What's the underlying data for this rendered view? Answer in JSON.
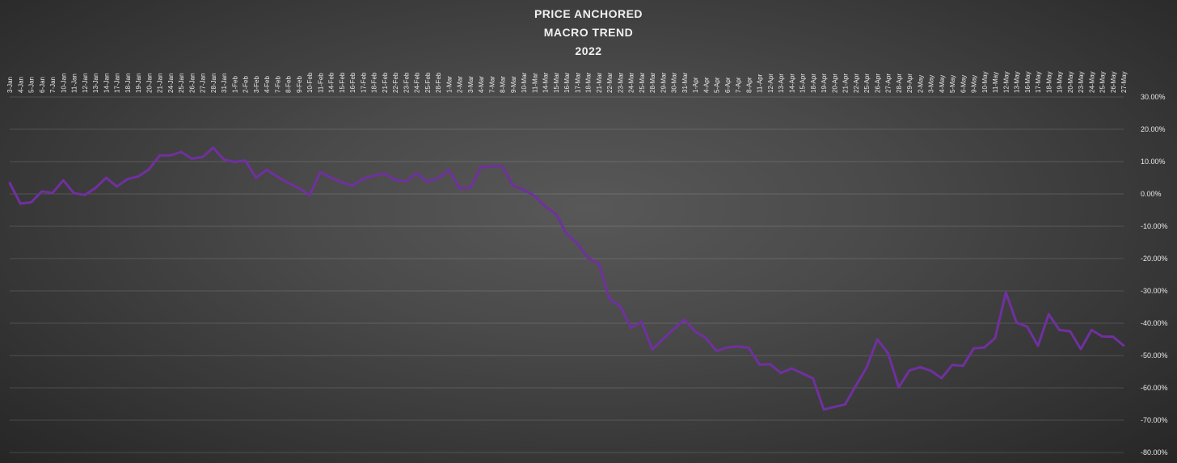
{
  "chart_data": {
    "type": "line",
    "title_lines": [
      "PRICE ANCHORED",
      "MACRO TREND",
      "2022"
    ],
    "ylim": [
      -80,
      30
    ],
    "y_ticks": [
      "-80.00%",
      "-70.00%",
      "-60.00%",
      "-50.00%",
      "-40.00%",
      "-30.00%",
      "-20.00%",
      "-10.00%",
      "0.00%",
      "10.00%",
      "20.00%",
      "30.00%"
    ],
    "y_tick_values": [
      -80,
      -70,
      -60,
      -50,
      -40,
      -30,
      -20,
      -10,
      0,
      10,
      20,
      30
    ],
    "grid": true,
    "line_color": "#7030a0",
    "x": [
      "3-Jan",
      "4-Jan",
      "5-Jan",
      "6-Jan",
      "7-Jan",
      "10-Jan",
      "11-Jan",
      "12-Jan",
      "13-Jan",
      "14-Jan",
      "17-Jan",
      "18-Jan",
      "19-Jan",
      "20-Jan",
      "21-Jan",
      "24-Jan",
      "25-Jan",
      "26-Jan",
      "27-Jan",
      "28-Jan",
      "31-Jan",
      "1-Feb",
      "2-Feb",
      "3-Feb",
      "4-Feb",
      "7-Feb",
      "8-Feb",
      "9-Feb",
      "10-Feb",
      "11-Feb",
      "14-Feb",
      "15-Feb",
      "16-Feb",
      "17-Feb",
      "18-Feb",
      "21-Feb",
      "22-Feb",
      "23-Feb",
      "24-Feb",
      "25-Feb",
      "28-Feb",
      "1-Mar",
      "2-Mar",
      "3-Mar",
      "4-Mar",
      "7-Mar",
      "8-Mar",
      "9-Mar",
      "10-Mar",
      "11-Mar",
      "14-Mar",
      "15-Mar",
      "16-Mar",
      "17-Mar",
      "18-Mar",
      "21-Mar",
      "22-Mar",
      "23-Mar",
      "24-Mar",
      "25-Mar",
      "28-Mar",
      "29-Mar",
      "30-Mar",
      "31-Mar",
      "1-Apr",
      "4-Apr",
      "5-Apr",
      "6-Apr",
      "7-Apr",
      "8-Apr",
      "11-Apr",
      "12-Apr",
      "13-Apr",
      "14-Apr",
      "15-Apr",
      "18-Apr",
      "19-Apr",
      "20-Apr",
      "21-Apr",
      "22-Apr",
      "25-Apr",
      "26-Apr",
      "27-Apr",
      "28-Apr",
      "29-Apr",
      "2-May",
      "3-May",
      "4-May",
      "5-May",
      "6-May",
      "9-May",
      "10-May",
      "11-May",
      "12-May",
      "13-May",
      "16-May",
      "17-May",
      "18-May",
      "19-May",
      "20-May",
      "23-May",
      "24-May",
      "25-May",
      "26-May",
      "27-May"
    ],
    "series": [
      {
        "values": [
          3.4,
          -3.0,
          -2.6,
          0.8,
          0.3,
          4.2,
          0.2,
          -0.3,
          1.8,
          5.0,
          2.3,
          4.6,
          5.4,
          7.6,
          11.9,
          11.9,
          13.0,
          10.9,
          11.4,
          14.3,
          10.6,
          9.9,
          10.3,
          5.0,
          7.5,
          5.3,
          3.4,
          1.8,
          -0.4,
          6.8,
          5.0,
          3.6,
          2.5,
          4.7,
          5.6,
          6.3,
          4.3,
          3.9,
          6.4,
          3.7,
          4.9,
          7.4,
          1.7,
          1.9,
          8.3,
          8.6,
          8.5,
          2.5,
          1.3,
          -0.6,
          -3.9,
          -6.2,
          -12.4,
          -15.3,
          -19.9,
          -21.5,
          -32.6,
          -34.7,
          -41.4,
          -39.6,
          -48.1,
          -44.9,
          -41.8,
          -38.9,
          -42.6,
          -44.6,
          -48.6,
          -47.5,
          -47.2,
          -47.6,
          -52.8,
          -52.7,
          -55.4,
          -54.0,
          -55.5,
          -57.1,
          -66.7,
          -65.9,
          -65.1,
          -59.3,
          -53.7,
          -45.0,
          -49.3,
          -59.8,
          -54.6,
          -53.6,
          -54.7,
          -57.0,
          -52.9,
          -53.2,
          -47.8,
          -47.5,
          -44.6,
          -30.5,
          -39.8,
          -41.1,
          -47.0,
          -37.2,
          -42.1,
          -42.5,
          -48.0,
          -42.1,
          -44.1,
          -44.2,
          -46.9
        ]
      }
    ]
  }
}
